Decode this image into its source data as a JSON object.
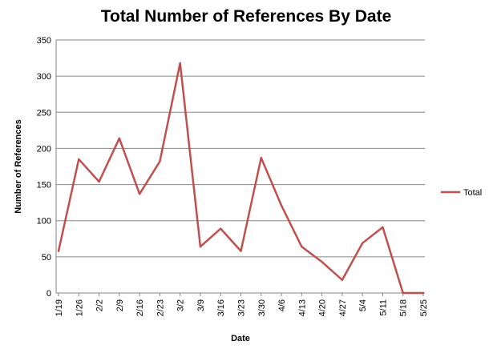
{
  "chart_data": {
    "type": "line",
    "title": "Total Number of References By Date",
    "xlabel": "Date",
    "ylabel": "Number of References",
    "categories": [
      "1/19",
      "1/26",
      "2/2",
      "2/9",
      "2/16",
      "2/23",
      "3/2",
      "3/9",
      "3/16",
      "3/23",
      "3/30",
      "4/6",
      "4/13",
      "4/20",
      "4/27",
      "5/4",
      "5/11",
      "5/18",
      "5/25"
    ],
    "series": [
      {
        "name": "Total",
        "color": "#C0504D",
        "values": [
          58,
          185,
          154,
          214,
          137,
          182,
          318,
          64,
          89,
          58,
          187,
          121,
          64,
          43,
          18,
          69,
          91,
          0,
          0
        ]
      }
    ],
    "ylim": [
      0,
      350
    ],
    "yticks": [
      0,
      50,
      100,
      150,
      200,
      250,
      300,
      350
    ],
    "grid": true,
    "legend_position": "right"
  }
}
